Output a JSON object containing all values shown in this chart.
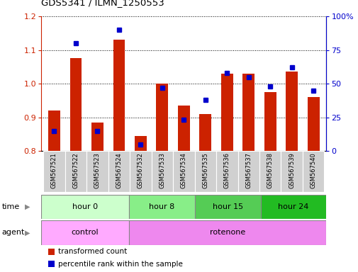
{
  "title": "GDS5341 / ILMN_1250553",
  "samples": [
    "GSM567521",
    "GSM567522",
    "GSM567523",
    "GSM567524",
    "GSM567532",
    "GSM567533",
    "GSM567534",
    "GSM567535",
    "GSM567536",
    "GSM567537",
    "GSM567538",
    "GSM567539",
    "GSM567540"
  ],
  "red_values": [
    0.92,
    1.075,
    0.885,
    1.13,
    0.845,
    1.0,
    0.935,
    0.91,
    1.03,
    1.03,
    0.975,
    1.035,
    0.96
  ],
  "blue_values": [
    15,
    80,
    15,
    90,
    5,
    47,
    23,
    38,
    58,
    55,
    48,
    62,
    45
  ],
  "ylim_left": [
    0.8,
    1.2
  ],
  "ylim_right": [
    0,
    100
  ],
  "yticks_left": [
    0.8,
    0.9,
    1.0,
    1.1,
    1.2
  ],
  "yticks_right": [
    0,
    25,
    50,
    75,
    100
  ],
  "ytick_labels_right": [
    "0",
    "25",
    "50",
    "75",
    "100%"
  ],
  "time_groups": [
    {
      "label": "hour 0",
      "start": 0,
      "end": 4,
      "color": "#ccffcc"
    },
    {
      "label": "hour 8",
      "start": 4,
      "end": 7,
      "color": "#88ee88"
    },
    {
      "label": "hour 15",
      "start": 7,
      "end": 10,
      "color": "#55cc55"
    },
    {
      "label": "hour 24",
      "start": 10,
      "end": 13,
      "color": "#22bb22"
    }
  ],
  "agent_groups": [
    {
      "label": "control",
      "start": 0,
      "end": 4,
      "color": "#ffaaff"
    },
    {
      "label": "rotenone",
      "start": 4,
      "end": 13,
      "color": "#ee88ee"
    }
  ],
  "bar_color": "#cc2200",
  "dot_color": "#0000cc",
  "legend_red": "transformed count",
  "legend_blue": "percentile rank within the sample",
  "sample_bg_color": "#d0d0d0",
  "left_axis_color": "#cc2200",
  "right_axis_color": "#0000cc"
}
